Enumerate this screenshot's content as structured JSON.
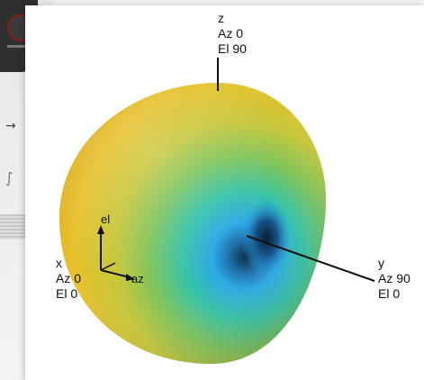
{
  "axis_labels": {
    "z": {
      "name": "z",
      "az": "Az 0",
      "el": "El 90"
    },
    "x": {
      "name": "x",
      "az": "Az 0",
      "el": "El 0"
    },
    "y": {
      "name": "y",
      "az": "Az 90",
      "el": "El 0"
    }
  },
  "triad": {
    "el": "el",
    "az": "az"
  },
  "colors": {
    "pattern_outer": "#e6c52a",
    "pattern_mid": "#7fc45a",
    "pattern_null": "#2aa9e8",
    "pattern_core": "#10324a",
    "axis_line": "#111111"
  }
}
